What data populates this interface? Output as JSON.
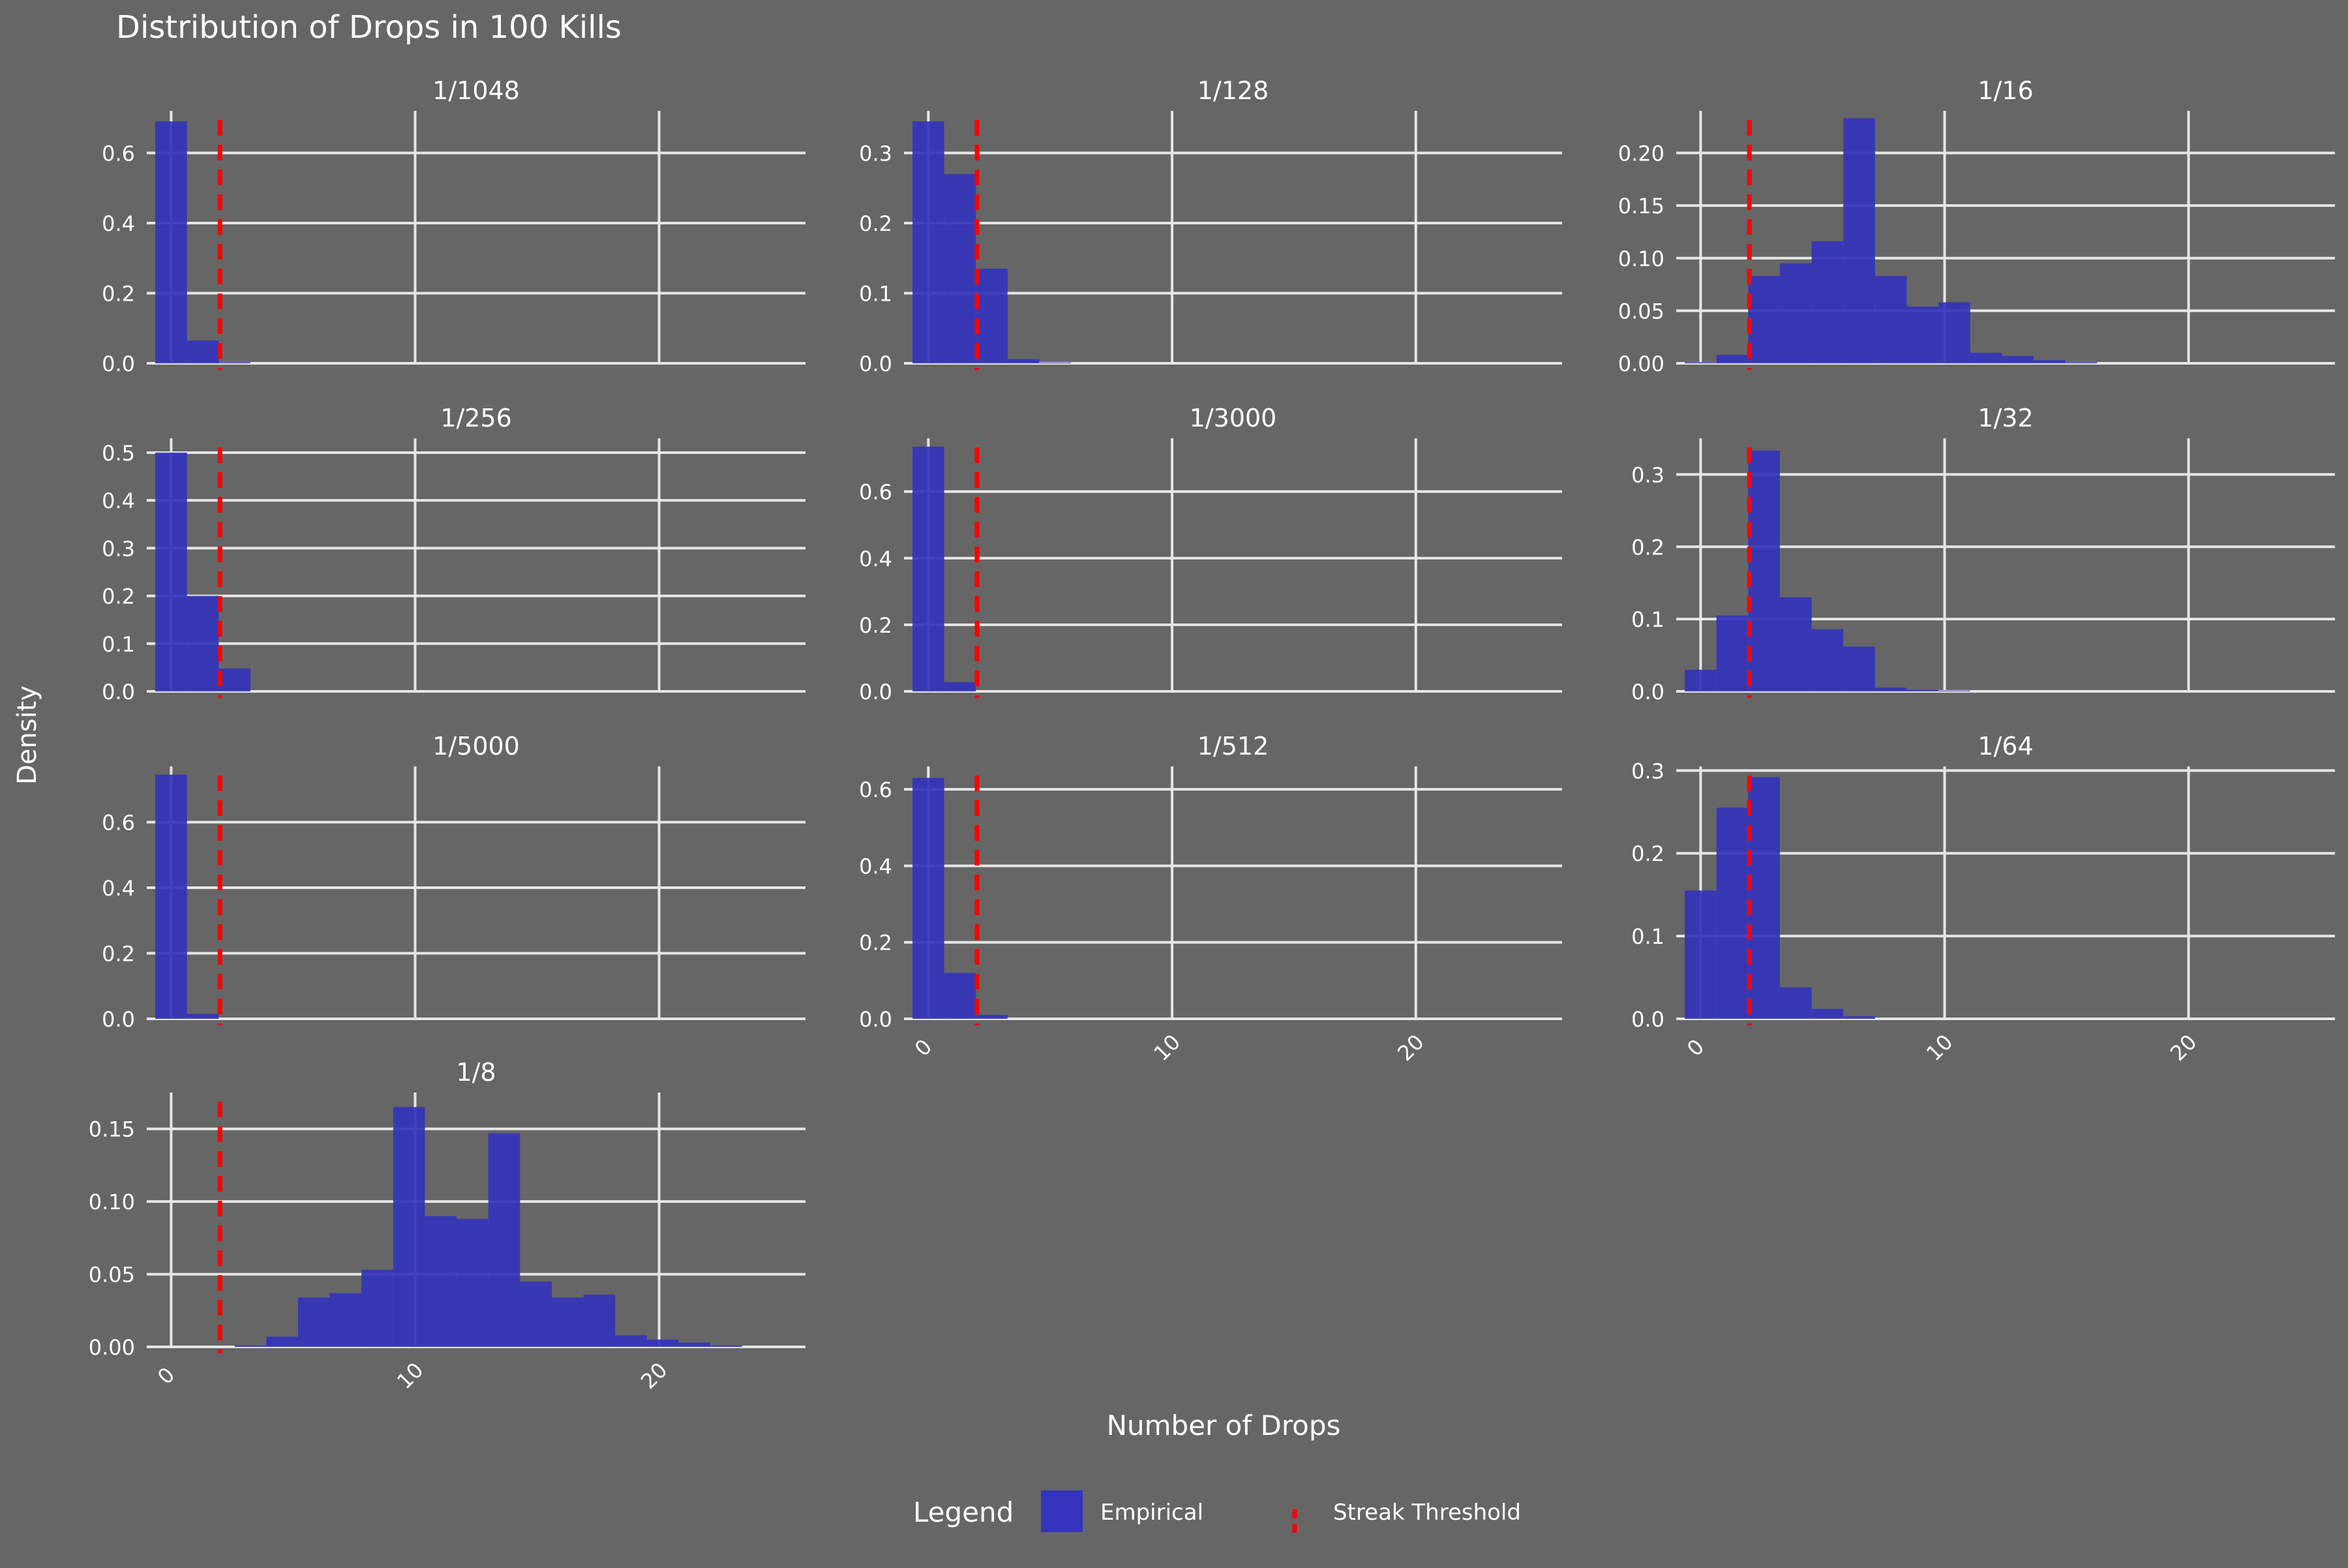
{
  "chart_data": {
    "type": "bar",
    "title": "Distribution of Drops in 100 Kills",
    "xlabel": "Number of Drops",
    "ylabel": "Density",
    "xlim": [
      -1,
      26
    ],
    "x_ticks": [
      0,
      10,
      20
    ],
    "grid": true,
    "streak_threshold": 2,
    "legend": {
      "title": "Legend",
      "placement": "bottom",
      "items": [
        {
          "name": "Empirical",
          "kind": "bar",
          "color": "#3333bb"
        },
        {
          "name": "Streak Threshold",
          "kind": "dashed-line",
          "color": "#ff0000"
        }
      ]
    },
    "colors": {
      "background": "#666666",
      "bar": "#3333bb",
      "threshold": "#ff0000",
      "grid": "#e6e6e6",
      "text": "#ffffff"
    },
    "panels": [
      {
        "label": "1/1048",
        "y_ticks": [
          "0.0",
          "0.2",
          "0.4",
          "0.6"
        ],
        "y_tick_values": [
          0,
          0.2,
          0.4,
          0.6
        ],
        "ylim": [
          0,
          0.72
        ],
        "bars": [
          {
            "x": 0,
            "y": 0.69
          },
          {
            "x": 1.3,
            "y": 0.065
          },
          {
            "x": 2.6,
            "y": 0.003
          }
        ]
      },
      {
        "label": "1/128",
        "y_ticks": [
          "0.0",
          "0.1",
          "0.2",
          "0.3"
        ],
        "y_tick_values": [
          0,
          0.1,
          0.2,
          0.3
        ],
        "ylim": [
          0,
          0.36
        ],
        "bars": [
          {
            "x": 0,
            "y": 0.345
          },
          {
            "x": 1.3,
            "y": 0.27
          },
          {
            "x": 2.6,
            "y": 0.135
          },
          {
            "x": 3.9,
            "y": 0.006
          },
          {
            "x": 5.2,
            "y": 0.001
          }
        ]
      },
      {
        "label": "1/16",
        "y_ticks": [
          "0.00",
          "0.05",
          "0.10",
          "0.15",
          "0.20"
        ],
        "y_tick_values": [
          0,
          0.05,
          0.1,
          0.15,
          0.2
        ],
        "ylim": [
          0,
          0.24
        ],
        "bars": [
          {
            "x": 0,
            "y": 0.001
          },
          {
            "x": 1.3,
            "y": 0.008
          },
          {
            "x": 2.6,
            "y": 0.083
          },
          {
            "x": 3.9,
            "y": 0.095
          },
          {
            "x": 5.2,
            "y": 0.116
          },
          {
            "x": 6.5,
            "y": 0.233
          },
          {
            "x": 7.8,
            "y": 0.083
          },
          {
            "x": 9.1,
            "y": 0.054
          },
          {
            "x": 10.4,
            "y": 0.058
          },
          {
            "x": 11.7,
            "y": 0.01
          },
          {
            "x": 13,
            "y": 0.007
          },
          {
            "x": 14.3,
            "y": 0.003
          },
          {
            "x": 15.6,
            "y": 0.001
          }
        ]
      },
      {
        "label": "1/256",
        "y_ticks": [
          "0.0",
          "0.1",
          "0.2",
          "0.3",
          "0.4",
          "0.5"
        ],
        "y_tick_values": [
          0,
          0.1,
          0.2,
          0.3,
          0.4,
          0.5
        ],
        "ylim": [
          0,
          0.53
        ],
        "bars": [
          {
            "x": 0,
            "y": 0.5
          },
          {
            "x": 1.3,
            "y": 0.2
          },
          {
            "x": 2.6,
            "y": 0.048
          }
        ]
      },
      {
        "label": "1/3000",
        "y_ticks": [
          "0.0",
          "0.2",
          "0.4",
          "0.6"
        ],
        "y_tick_values": [
          0,
          0.2,
          0.4,
          0.6
        ],
        "ylim": [
          0,
          0.76
        ],
        "bars": [
          {
            "x": 0,
            "y": 0.735
          },
          {
            "x": 1.3,
            "y": 0.028
          }
        ]
      },
      {
        "label": "1/32",
        "y_ticks": [
          "0.0",
          "0.1",
          "0.2",
          "0.3"
        ],
        "y_tick_values": [
          0,
          0.1,
          0.2,
          0.3
        ],
        "ylim": [
          0,
          0.35
        ],
        "bars": [
          {
            "x": 0,
            "y": 0.03
          },
          {
            "x": 1.3,
            "y": 0.105
          },
          {
            "x": 2.6,
            "y": 0.333
          },
          {
            "x": 3.9,
            "y": 0.13
          },
          {
            "x": 5.2,
            "y": 0.086
          },
          {
            "x": 6.5,
            "y": 0.062
          },
          {
            "x": 7.8,
            "y": 0.005
          },
          {
            "x": 9.1,
            "y": 0.002
          },
          {
            "x": 10.4,
            "y": 0.001
          }
        ]
      },
      {
        "label": "1/5000",
        "y_ticks": [
          "0.0",
          "0.2",
          "0.4",
          "0.6"
        ],
        "y_tick_values": [
          0,
          0.2,
          0.4,
          0.6
        ],
        "ylim": [
          0,
          0.77
        ],
        "bars": [
          {
            "x": 0,
            "y": 0.745
          },
          {
            "x": 1.3,
            "y": 0.015
          }
        ]
      },
      {
        "label": "1/512",
        "y_ticks": [
          "0.0",
          "0.2",
          "0.4",
          "0.6"
        ],
        "y_tick_values": [
          0,
          0.2,
          0.4,
          0.6
        ],
        "ylim": [
          0,
          0.66
        ],
        "bars": [
          {
            "x": 0,
            "y": 0.63
          },
          {
            "x": 1.3,
            "y": 0.12
          },
          {
            "x": 2.6,
            "y": 0.01
          }
        ]
      },
      {
        "label": "1/64",
        "y_ticks": [
          "0.0",
          "0.1",
          "0.2",
          "0.3"
        ],
        "y_tick_values": [
          0,
          0.1,
          0.2,
          0.3
        ],
        "ylim": [
          0,
          0.305
        ],
        "bars": [
          {
            "x": 0,
            "y": 0.155
          },
          {
            "x": 1.3,
            "y": 0.255
          },
          {
            "x": 2.6,
            "y": 0.292
          },
          {
            "x": 3.9,
            "y": 0.038
          },
          {
            "x": 5.2,
            "y": 0.012
          },
          {
            "x": 6.5,
            "y": 0.003
          }
        ]
      },
      {
        "label": "1/8",
        "y_ticks": [
          "0.00",
          "0.05",
          "0.10",
          "0.15"
        ],
        "y_tick_values": [
          0,
          0.05,
          0.1,
          0.15
        ],
        "ylim": [
          0,
          0.175
        ],
        "bars": [
          {
            "x": 3.25,
            "y": 0.001
          },
          {
            "x": 4.55,
            "y": 0.007
          },
          {
            "x": 5.85,
            "y": 0.034
          },
          {
            "x": 7.15,
            "y": 0.037
          },
          {
            "x": 8.45,
            "y": 0.053
          },
          {
            "x": 9.75,
            "y": 0.165
          },
          {
            "x": 11.05,
            "y": 0.09
          },
          {
            "x": 12.35,
            "y": 0.088
          },
          {
            "x": 13.65,
            "y": 0.147
          },
          {
            "x": 14.95,
            "y": 0.045
          },
          {
            "x": 16.25,
            "y": 0.034
          },
          {
            "x": 17.55,
            "y": 0.036
          },
          {
            "x": 18.85,
            "y": 0.008
          },
          {
            "x": 20.15,
            "y": 0.005
          },
          {
            "x": 21.45,
            "y": 0.003
          },
          {
            "x": 22.75,
            "y": 0.001
          }
        ]
      }
    ]
  }
}
